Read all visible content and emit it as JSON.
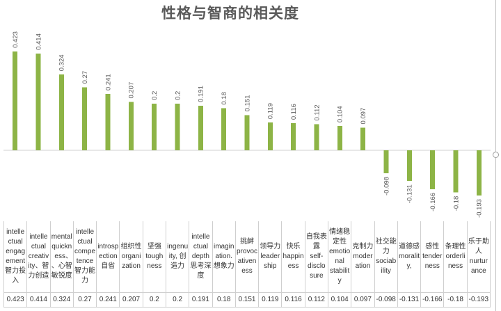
{
  "chart_data": {
    "type": "bar",
    "title": "性格与智商的相关度",
    "categories": [
      "intellectual engagement 智力投入",
      "intellectual creativity、智力创造",
      "mental quickness、、心智敏锐度",
      "intellectual competence 智力能力",
      "introspection 自省",
      "组织性 organization",
      "坚强 toughness",
      "ingenuity, 创造力",
      "intellectual depth 思考深度",
      "imagination. 想象力",
      "挑衅 provocativeness",
      "领导力 leadership",
      "快乐 happiness",
      "自我表露 self-disclosure",
      "情绪稳定性 emotional stability",
      "克制力 moderation",
      "社交能力 sociability",
      "道德感 morality,",
      "感性 tenderness",
      "条理性 orderliness",
      "乐于助人 nurturance"
    ],
    "values": [
      0.423,
      0.414,
      0.324,
      0.27,
      0.241,
      0.207,
      0.2,
      0.2,
      0.191,
      0.18,
      0.151,
      0.119,
      0.116,
      0.112,
      0.104,
      0.097,
      -0.098,
      -0.131,
      -0.166,
      -0.18,
      -0.193
    ],
    "ylim": [
      -0.3,
      0.5
    ],
    "grid": false,
    "legend": false,
    "data_labels": true,
    "data_table": true
  },
  "colors": {
    "bar": "#8db446",
    "title": "#595959",
    "data_label": "#595959",
    "table_text": "#333333",
    "axis": "#d0d0d0"
  }
}
